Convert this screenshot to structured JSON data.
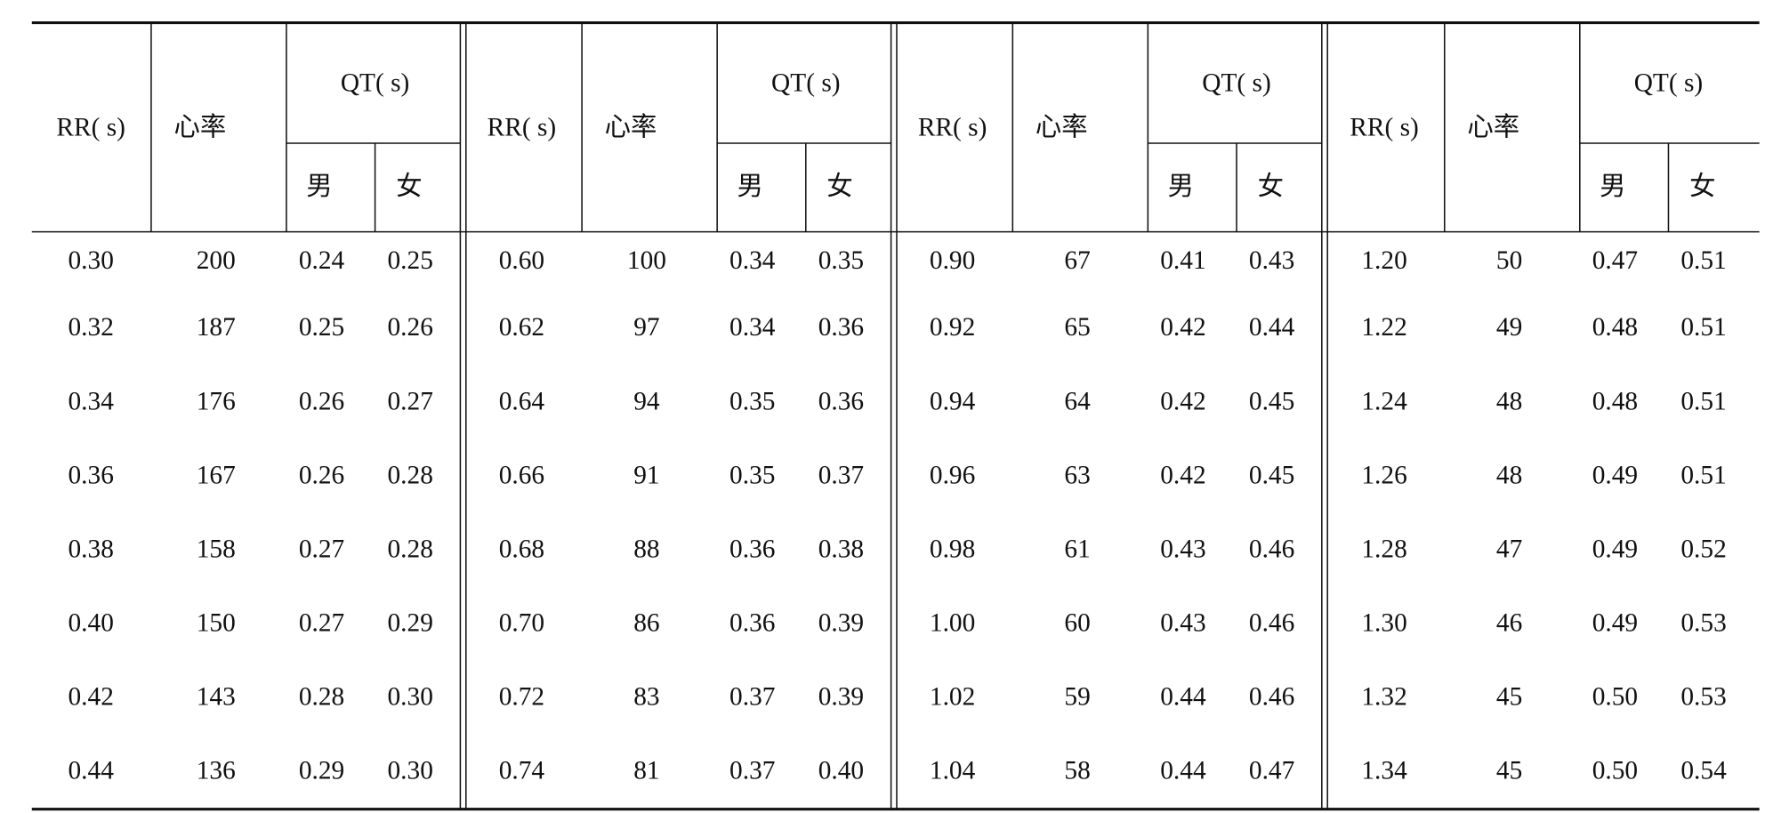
{
  "header": {
    "rr": "RR( s)",
    "heart_rate": "心率",
    "qt": "QT( s)",
    "male": "男",
    "female": "女"
  },
  "table": {
    "rows": [
      [
        "0.30",
        "200",
        "0.24",
        "0.25",
        "0.60",
        "100",
        "0.34",
        "0.35",
        "0.90",
        "67",
        "0.41",
        "0.43",
        "1.20",
        "50",
        "0.47",
        "0.51"
      ],
      [
        "0.32",
        "187",
        "0.25",
        "0.26",
        "0.62",
        "97",
        "0.34",
        "0.36",
        "0.92",
        "65",
        "0.42",
        "0.44",
        "1.22",
        "49",
        "0.48",
        "0.51"
      ],
      [
        "0.34",
        "176",
        "0.26",
        "0.27",
        "0.64",
        "94",
        "0.35",
        "0.36",
        "0.94",
        "64",
        "0.42",
        "0.45",
        "1.24",
        "48",
        "0.48",
        "0.51"
      ],
      [
        "0.36",
        "167",
        "0.26",
        "0.28",
        "0.66",
        "91",
        "0.35",
        "0.37",
        "0.96",
        "63",
        "0.42",
        "0.45",
        "1.26",
        "48",
        "0.49",
        "0.51"
      ],
      [
        "0.38",
        "158",
        "0.27",
        "0.28",
        "0.68",
        "88",
        "0.36",
        "0.38",
        "0.98",
        "61",
        "0.43",
        "0.46",
        "1.28",
        "47",
        "0.49",
        "0.52"
      ],
      [
        "0.40",
        "150",
        "0.27",
        "0.29",
        "0.70",
        "86",
        "0.36",
        "0.39",
        "1.00",
        "60",
        "0.43",
        "0.46",
        "1.30",
        "46",
        "0.49",
        "0.53"
      ],
      [
        "0.42",
        "143",
        "0.28",
        "0.30",
        "0.72",
        "83",
        "0.37",
        "0.39",
        "1.02",
        "59",
        "0.44",
        "0.46",
        "1.32",
        "45",
        "0.50",
        "0.53"
      ],
      [
        "0.44",
        "136",
        "0.29",
        "0.30",
        "0.74",
        "81",
        "0.37",
        "0.40",
        "1.04",
        "58",
        "0.44",
        "0.47",
        "1.34",
        "45",
        "0.50",
        "0.54"
      ]
    ]
  }
}
